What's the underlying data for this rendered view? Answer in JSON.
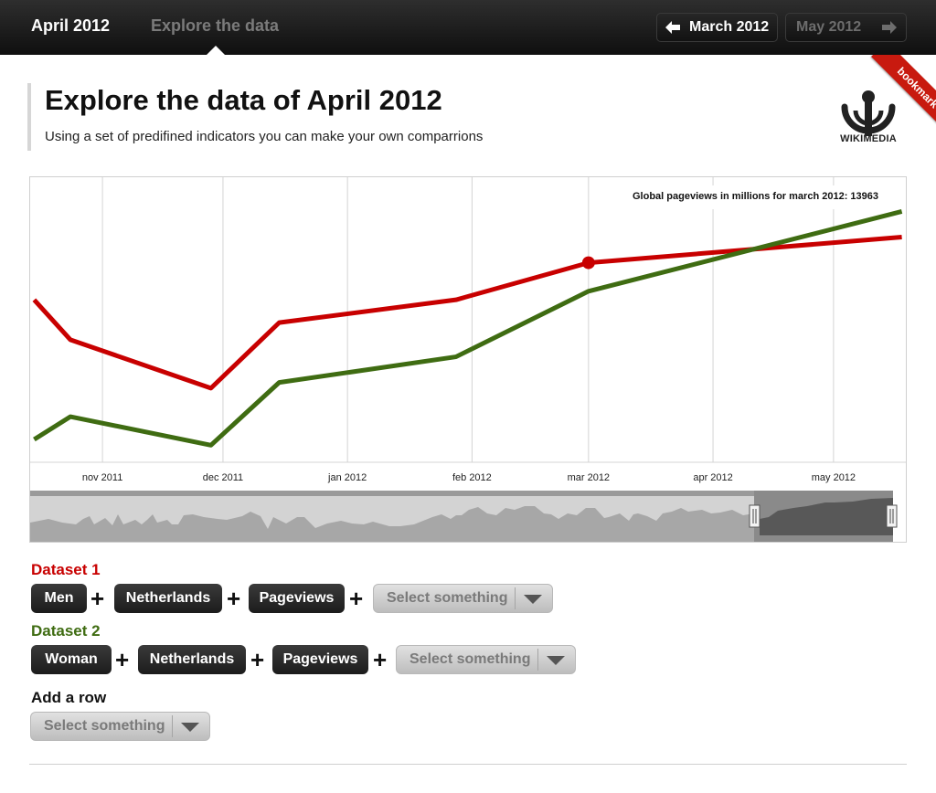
{
  "topbar": {
    "active_tab": "April 2012",
    "explore_tab": "Explore the data",
    "prev_button": "March 2012",
    "next_button": "May 2012"
  },
  "header": {
    "title": "Explore the data of April 2012",
    "subtitle": "Using a set of predifined indicators you can  make your own comparrions",
    "logo_text": "WIKIMEDIA",
    "ribbon": "bookmark"
  },
  "chart_data": {
    "type": "line",
    "x_ticks": [
      "nov 2011",
      "dec 2011",
      "jan 2012",
      "feb 2012",
      "mar 2012",
      "apr 2012",
      "may 2012"
    ],
    "tooltip": "Global pageviews in millions for march 2012: 13963",
    "highlight": {
      "series": "Dataset 1",
      "x": "mar 2012"
    },
    "grid": true,
    "series": [
      {
        "name": "Dataset 1",
        "color": "#c80000",
        "points": [
          {
            "x": "2011-10-15",
            "y": 57
          },
          {
            "x": "2011-10-24",
            "y": 43
          },
          {
            "x": "2011-11-28",
            "y": 26
          },
          {
            "x": "2011-12-15",
            "y": 49
          },
          {
            "x": "2012-01-28",
            "y": 57
          },
          {
            "x": "2012-03-01",
            "y": 70
          },
          {
            "x": "2012-05-18",
            "y": 79
          }
        ]
      },
      {
        "name": "Dataset 2",
        "color": "#3f6c12",
        "points": [
          {
            "x": "2011-10-15",
            "y": 8
          },
          {
            "x": "2011-10-24",
            "y": 16
          },
          {
            "x": "2011-11-28",
            "y": 6
          },
          {
            "x": "2011-12-15",
            "y": 28
          },
          {
            "x": "2012-01-28",
            "y": 37
          },
          {
            "x": "2012-03-01",
            "y": 60
          },
          {
            "x": "2012-05-18",
            "y": 88
          }
        ]
      }
    ],
    "ylim": [
      0,
      100
    ]
  },
  "datasets": {
    "ds1": {
      "label": "Dataset 1",
      "items": [
        "Men",
        "Netherlands",
        "Pageviews"
      ],
      "select": "Select something"
    },
    "ds2": {
      "label": "Dataset 2",
      "items": [
        "Woman",
        "Netherlands",
        "Pageviews"
      ],
      "select": "Select something"
    },
    "addrow": {
      "label": "Add a row",
      "select": "Select something"
    }
  }
}
